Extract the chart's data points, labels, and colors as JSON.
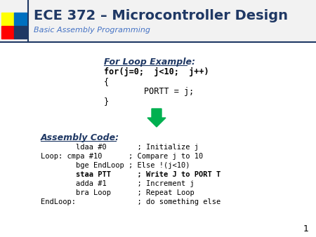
{
  "title": "ECE 372 – Microcontroller Design",
  "subtitle": "Basic Assembly Programming",
  "bg_color": "#ffffff",
  "title_color": "#1f3864",
  "subtitle_color": "#4472c4",
  "header_line_color": "#1f3864",
  "slide_num": "1",
  "for_loop_label": "For Loop Example:",
  "for_loop_code": [
    "for(j=0;  j<10;  j++)",
    "{",
    "        PORTT = j;",
    "}"
  ],
  "assembly_label": "Assembly Code:",
  "assembly_code": [
    "        ldaa #0       ; Initialize j",
    "Loop: cmpa #10      ; Compare j to 10",
    "        bge EndLoop ; Else !(j<10)",
    "        staa PTT      ; Write J to PORT T",
    "        adda #1       ; Increment j",
    "        bra Loop      ; Repeat Loop",
    "EndLoop:              ; do something else"
  ],
  "assembly_bold_line": 3,
  "arrow_color": "#00b050",
  "label_color": "#1f3864",
  "code_color": "#000000",
  "sq_colors": [
    "#ffff00",
    "#ff0000",
    "#0070c0",
    "#1f3864"
  ]
}
